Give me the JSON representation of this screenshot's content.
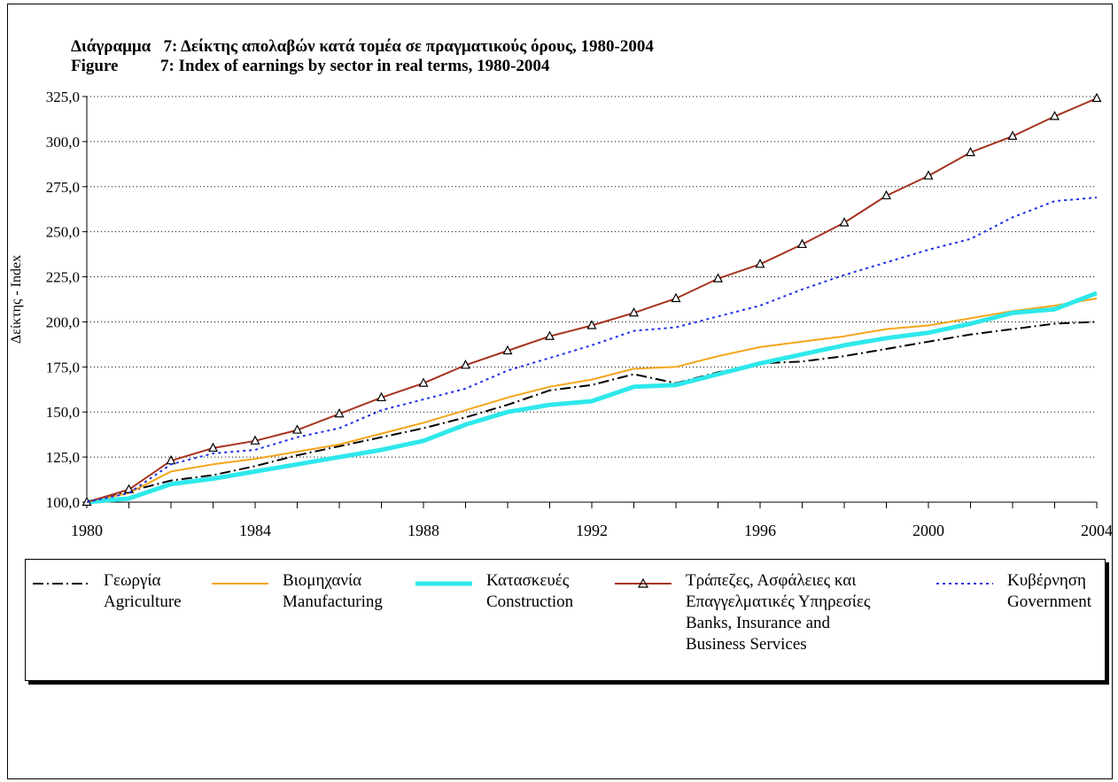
{
  "titles": {
    "line1": "Διάγραμμα   7: Δείκτης απολαβών κατά τομέα σε πραγματικούς όρους, 1980-2004",
    "line2": "Figure          7: Index of earnings by sector in real terms, 1980-2004"
  },
  "chart_data": {
    "type": "line",
    "ylabel": "Δείκτης - Index",
    "xlabel": "",
    "xlim": [
      1980,
      2004
    ],
    "ylim": [
      100,
      325
    ],
    "x_ticks": [
      "1980",
      "1984",
      "1988",
      "1992",
      "1996",
      "2000",
      "2004"
    ],
    "y_ticks": [
      "100,0",
      "125,0",
      "150,0",
      "175,0",
      "200,0",
      "225,0",
      "250,0",
      "275,0",
      "300,0",
      "325,0"
    ],
    "grid": "horizontal dotted",
    "legend_placement": "bottom",
    "x": [
      1980,
      1981,
      1982,
      1983,
      1984,
      1985,
      1986,
      1987,
      1988,
      1989,
      1990,
      1991,
      1992,
      1993,
      1994,
      1995,
      1996,
      1997,
      1998,
      1999,
      2000,
      2001,
      2002,
      2003,
      2004
    ],
    "series": [
      {
        "name": "Γεωργία / Agriculture",
        "color": "#000000",
        "style": "dash-dot",
        "values": [
          100,
          106,
          112,
          115,
          120,
          126,
          131,
          136,
          141,
          147,
          154,
          162,
          165,
          171,
          166,
          172,
          177,
          178,
          181,
          185,
          189,
          193,
          196,
          199,
          200
        ]
      },
      {
        "name": "Βιομηχανία / Manufacturing",
        "color": "#f5a51c",
        "style": "solid",
        "values": [
          100,
          105,
          117,
          121,
          124,
          128,
          132,
          138,
          144,
          151,
          158,
          164,
          168,
          174,
          175,
          181,
          186,
          189,
          192,
          196,
          198,
          202,
          206,
          209,
          213
        ]
      },
      {
        "name": "Κατασκευές / Construction",
        "color": "#2ee8ea",
        "style": "thick",
        "values": [
          100,
          102,
          110,
          113,
          117,
          121,
          125,
          129,
          134,
          143,
          150,
          154,
          156,
          164,
          165,
          171,
          177,
          182,
          187,
          191,
          194,
          199,
          205,
          207,
          216
        ]
      },
      {
        "name": "Τράπεζες, Ασφάλειες και Επαγγελματικές Υπηρεσίες / Banks, Insurance and Business Services",
        "color": "#a6331e",
        "style": "solid-marker",
        "values": [
          100,
          107,
          123,
          130,
          134,
          140,
          149,
          158,
          166,
          176,
          184,
          192,
          198,
          205,
          213,
          224,
          232,
          243,
          255,
          270,
          281,
          294,
          303,
          314,
          324
        ]
      },
      {
        "name": "Κυβέρνηση / Government",
        "color": "#1f2fe6",
        "style": "dotted",
        "values": [
          100,
          105,
          121,
          127,
          129,
          136,
          141,
          151,
          157,
          163,
          173,
          180,
          187,
          195,
          197,
          203,
          209,
          218,
          226,
          233,
          240,
          246,
          258,
          267,
          269
        ]
      }
    ]
  },
  "legend": [
    {
      "lines": [
        "Γεωργία",
        "Agriculture"
      ]
    },
    {
      "lines": [
        "Βιομηχανία",
        "Manufacturing"
      ]
    },
    {
      "lines": [
        "Κατασκευές",
        "Construction"
      ]
    },
    {
      "lines": [
        "Τράπεζες, Ασφάλειες και",
        "Επαγγελματικές Υπηρεσίες",
        "Banks, Insurance and",
        "Business Services"
      ]
    },
    {
      "lines": [
        "Κυβέρνηση",
        "Government"
      ]
    }
  ]
}
